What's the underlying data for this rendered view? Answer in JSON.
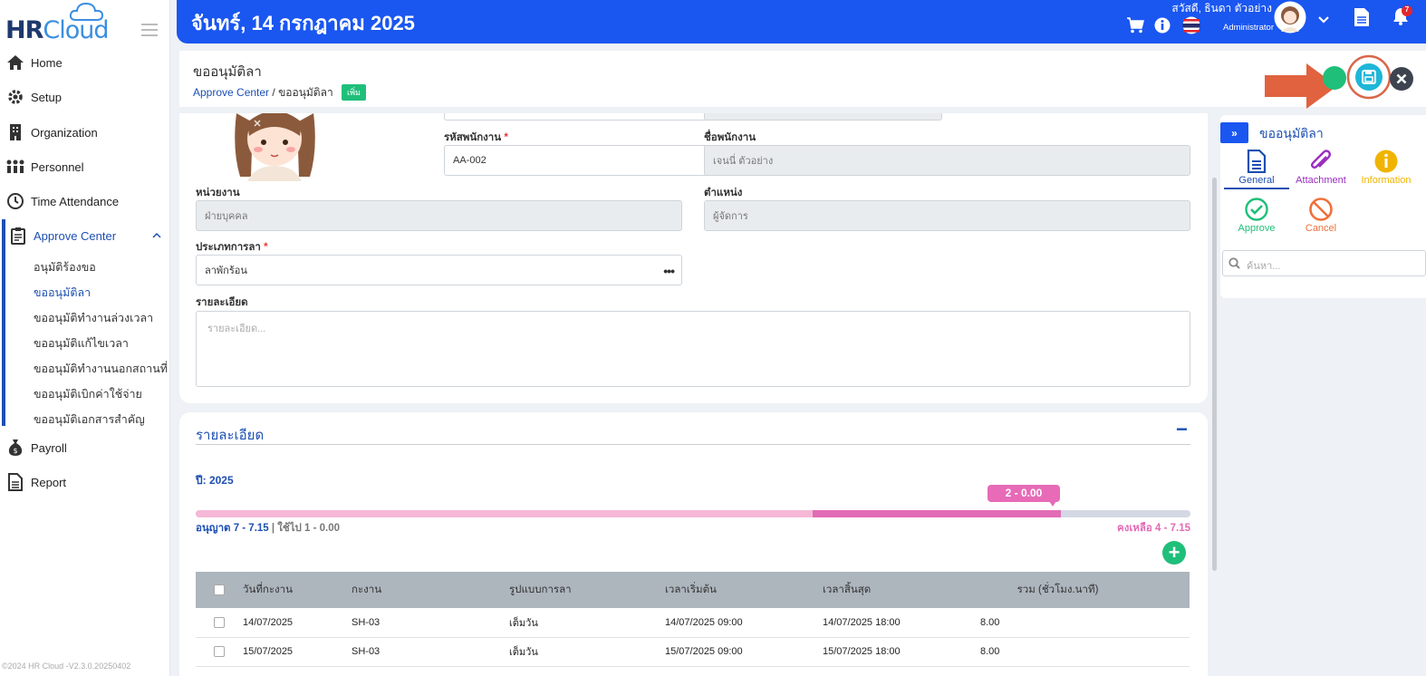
{
  "brand": {
    "hr": "HR",
    "cloud": "Cloud"
  },
  "sidebar": {
    "items": [
      {
        "label": "Home",
        "icon": "home-icon"
      },
      {
        "label": "Setup",
        "icon": "gear-icon"
      },
      {
        "label": "Organization",
        "icon": "building-icon"
      },
      {
        "label": "Personnel",
        "icon": "people-icon"
      },
      {
        "label": "Time Attendance",
        "icon": "clock-icon"
      },
      {
        "label": "Approve Center",
        "icon": "clipboard-icon"
      },
      {
        "label": "Payroll",
        "icon": "money-bag-icon"
      },
      {
        "label": "Report",
        "icon": "document-icon"
      }
    ],
    "sub_items": [
      "อนุมัติร้องขอ",
      "ขออนุมัติลา",
      "ขออนุมัติทำงานล่วงเวลา",
      "ขออนุมัติแก้ไขเวลา",
      "ขออนุมัติทำงานนอกสถานที่",
      "ขออนุมัติเบิกค่าใช้จ่าย",
      "ขออนุมัติเอกสารสำคัญ"
    ],
    "version": "©2024 HR Cloud -V2.3.0.20250402"
  },
  "header": {
    "date": "จันทร์, 14 กรกฎาคม 2025",
    "user_name": "สวัสดี, ธินดา ตัวอย่าง",
    "user_role": "Administrator",
    "notification_count": "7",
    "accent": "#1a56f0"
  },
  "page": {
    "title": "ขออนุมัติลา",
    "breadcrumb_parent": "Approve Center",
    "breadcrumb_sep": "/",
    "breadcrumb_current": "ขออนุมัติลา",
    "badge": "เพิ่ม"
  },
  "form": {
    "employee_code_label": "รหัสพนักงาน",
    "employee_code_value": "AA-002",
    "employee_name_label": "ชื่อพนักงาน",
    "employee_name_value": "เจนนี่ ตัวอย่าง",
    "department_label": "หน่วยงาน",
    "department_value": "ฝ่ายบุคคล",
    "position_label": "ตำแหน่ง",
    "position_value": "ผู้จัดการ",
    "leave_type_label": "ประเภทการลา",
    "leave_type_value": "ลาพักร้อน",
    "detail_label": "รายละเอียด",
    "detail_placeholder": "รายละเอียด...",
    "required_mark": "*",
    "lookup_dots": "•••"
  },
  "right_panel": {
    "title": "ขออนุมัติลา",
    "toggle": "»",
    "tabs": [
      {
        "label": "General",
        "icon": "document-icon",
        "color": "#1d4fb3"
      },
      {
        "label": "Attachment",
        "icon": "paperclip-icon",
        "color": "#9b2fc1"
      },
      {
        "label": "Information",
        "icon": "info-icon",
        "color": "#f0b400"
      }
    ],
    "actions": [
      {
        "label": "Approve",
        "icon": "check-circle-icon",
        "color": "#1fbf7a"
      },
      {
        "label": "Cancel",
        "icon": "ban-icon",
        "color": "#f0703a"
      }
    ],
    "search_placeholder": "ค้นหา..."
  },
  "detail": {
    "title": "รายละเอียด",
    "collapse": "−",
    "year": "ปี: 2025",
    "tooltip": "2 - 0.00",
    "allowed": "อนุญาต 7 - 7.15",
    "used": "| ใช้ไป 1 - 0.00",
    "remaining": "คงเหลือ 4 - 7.15",
    "progress": {
      "light_fraction": 0.62,
      "dark_fraction": 0.25
    },
    "add": "+",
    "columns": [
      "วันที่กะงาน",
      "กะงาน",
      "รูปแบบการลา",
      "เวลาเริ่มต้น",
      "เวลาสิ้นสุด",
      "รวม (ชั่วโมง.นาที)"
    ],
    "rows": [
      {
        "date": "14/07/2025",
        "shift": "SH-03",
        "type": "เต็มวัน",
        "start": "14/07/2025 09:00",
        "end": "14/07/2025 18:00",
        "total": "8.00"
      },
      {
        "date": "15/07/2025",
        "shift": "SH-03",
        "type": "เต็มวัน",
        "start": "15/07/2025 09:00",
        "end": "15/07/2025 18:00",
        "total": "8.00"
      }
    ]
  }
}
